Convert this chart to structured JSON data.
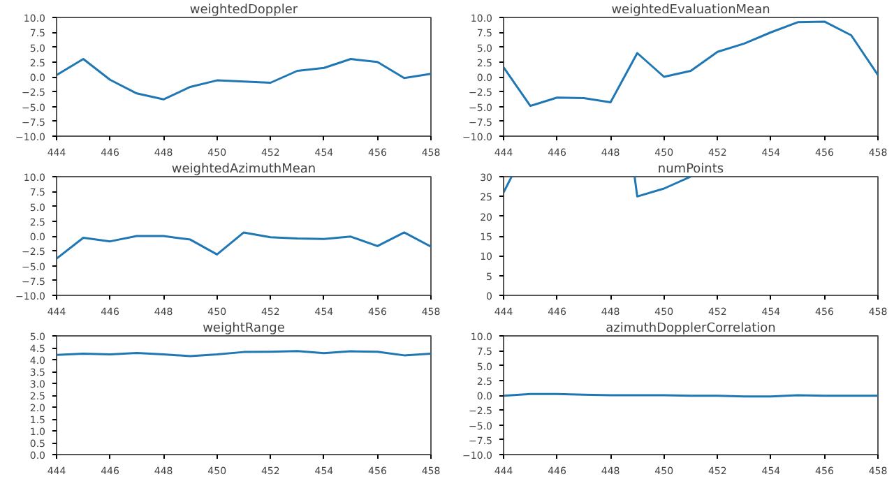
{
  "chart_data": [
    {
      "type": "line",
      "title": "weightedDoppler",
      "color": "#1f77b4",
      "x": [
        444,
        445,
        446,
        447,
        448,
        449,
        450,
        451,
        452,
        453,
        454,
        455,
        456,
        457,
        458
      ],
      "values": [
        0.3,
        3.0,
        -0.5,
        -2.8,
        -3.8,
        -1.7,
        -0.6,
        -0.8,
        -1.0,
        1.0,
        1.5,
        3.0,
        2.5,
        -0.2,
        0.5
      ],
      "xlim": [
        444,
        458
      ],
      "xticks": [
        444,
        446,
        448,
        450,
        452,
        454,
        456,
        458
      ],
      "ylim": [
        -10,
        10
      ],
      "yticks": [
        {
          "value": -10,
          "label": "−10.0"
        },
        {
          "value": -7.5,
          "label": "−7.5"
        },
        {
          "value": -5,
          "label": "−5.0"
        },
        {
          "value": -2.5,
          "label": "−2.5"
        },
        {
          "value": 0,
          "label": "0.0"
        },
        {
          "value": 2.5,
          "label": "2.5"
        },
        {
          "value": 5,
          "label": "5.0"
        },
        {
          "value": 7.5,
          "label": "7.5"
        },
        {
          "value": 10,
          "label": "10.0"
        }
      ]
    },
    {
      "type": "line",
      "title": "weightedEvaluationMean",
      "color": "#1f77b4",
      "x": [
        444,
        445,
        446,
        447,
        448,
        449,
        450,
        451,
        452,
        453,
        454,
        455,
        456,
        457,
        458
      ],
      "values": [
        1.6,
        -4.9,
        -3.5,
        -3.6,
        -4.3,
        4.0,
        0.0,
        1.0,
        4.2,
        5.6,
        7.5,
        9.2,
        9.3,
        7.0,
        0.3
      ],
      "xlim": [
        444,
        458
      ],
      "xticks": [
        444,
        446,
        448,
        450,
        452,
        454,
        456,
        458
      ],
      "ylim": [
        -10,
        10
      ],
      "yticks": [
        {
          "value": -10,
          "label": "−10.0"
        },
        {
          "value": -7.5,
          "label": "−7.5"
        },
        {
          "value": -5,
          "label": "−5.0"
        },
        {
          "value": -2.5,
          "label": "−2.5"
        },
        {
          "value": 0,
          "label": "0.0"
        },
        {
          "value": 2.5,
          "label": "2.5"
        },
        {
          "value": 5,
          "label": "5.0"
        },
        {
          "value": 7.5,
          "label": "7.5"
        },
        {
          "value": 10,
          "label": "10.0"
        }
      ]
    },
    {
      "type": "line",
      "title": "weightedAzimuthMean",
      "color": "#1f77b4",
      "x": [
        444,
        445,
        446,
        447,
        448,
        449,
        450,
        451,
        452,
        453,
        454,
        455,
        456,
        457,
        458
      ],
      "values": [
        -3.8,
        -0.3,
        -0.9,
        0.0,
        0.0,
        -0.6,
        -3.1,
        0.6,
        -0.2,
        -0.4,
        -0.5,
        -0.1,
        -1.7,
        0.6,
        -1.8
      ],
      "xlim": [
        444,
        458
      ],
      "xticks": [
        444,
        446,
        448,
        450,
        452,
        454,
        456,
        458
      ],
      "ylim": [
        -10,
        10
      ],
      "yticks": [
        {
          "value": -10,
          "label": "−10.0"
        },
        {
          "value": -7.5,
          "label": "−7.5"
        },
        {
          "value": -5,
          "label": "−5.0"
        },
        {
          "value": -2.5,
          "label": "−2.5"
        },
        {
          "value": 0,
          "label": "0.0"
        },
        {
          "value": 2.5,
          "label": "2.5"
        },
        {
          "value": 5,
          "label": "5.0"
        },
        {
          "value": 7.5,
          "label": "7.5"
        },
        {
          "value": 10,
          "label": "10.0"
        }
      ]
    },
    {
      "type": "line",
      "title": "numPoints",
      "color": "#1f77b4",
      "x": [
        444,
        444.3,
        446,
        448.9,
        449,
        450,
        451
      ],
      "values": [
        26,
        30,
        null,
        30,
        25,
        27,
        30
      ],
      "xlim": [
        444,
        458
      ],
      "xticks": [
        444,
        446,
        448,
        450,
        452,
        454,
        456,
        458
      ],
      "ylim": [
        0,
        30
      ],
      "yticks": [
        0,
        5,
        10,
        15,
        20,
        25,
        30
      ]
    },
    {
      "type": "line",
      "title": "weightRange",
      "color": "#1f77b4",
      "x": [
        444,
        445,
        446,
        447,
        448,
        449,
        450,
        451,
        452,
        453,
        454,
        455,
        456,
        457,
        458
      ],
      "values": [
        4.2,
        4.25,
        4.22,
        4.28,
        4.22,
        4.15,
        4.22,
        4.32,
        4.33,
        4.36,
        4.27,
        4.35,
        4.33,
        4.18,
        4.25
      ],
      "xlim": [
        444,
        458
      ],
      "xticks": [
        444,
        446,
        448,
        450,
        452,
        454,
        456,
        458
      ],
      "ylim": [
        0,
        5
      ],
      "yticks": [
        {
          "value": 0,
          "label": "0.0"
        },
        {
          "value": 0.5,
          "label": "0.5"
        },
        {
          "value": 1,
          "label": "1.0"
        },
        {
          "value": 1.5,
          "label": "1.5"
        },
        {
          "value": 2,
          "label": "2.0"
        },
        {
          "value": 2.5,
          "label": "2.5"
        },
        {
          "value": 3,
          "label": "3.0"
        },
        {
          "value": 3.5,
          "label": "3.5"
        },
        {
          "value": 4,
          "label": "4.0"
        },
        {
          "value": 4.5,
          "label": "4.5"
        },
        {
          "value": 5,
          "label": "5.0"
        }
      ]
    },
    {
      "type": "line",
      "title": "azimuthDopplerCorrelation",
      "color": "#1f77b4",
      "x": [
        444,
        445,
        446,
        447,
        448,
        449,
        450,
        451,
        452,
        453,
        454,
        455,
        456,
        457,
        458
      ],
      "values": [
        -0.1,
        0.2,
        0.2,
        0.1,
        0.0,
        0.0,
        0.0,
        -0.1,
        -0.1,
        -0.2,
        -0.2,
        0.0,
        -0.1,
        -0.1,
        -0.1
      ],
      "xlim": [
        444,
        458
      ],
      "xticks": [
        444,
        446,
        448,
        450,
        452,
        454,
        456,
        458
      ],
      "ylim": [
        -10,
        10
      ],
      "yticks": [
        {
          "value": -10,
          "label": "−10.0"
        },
        {
          "value": -7.5,
          "label": "−7.5"
        },
        {
          "value": -5,
          "label": "−5.0"
        },
        {
          "value": -2.5,
          "label": "−2.5"
        },
        {
          "value": 0,
          "label": "0.0"
        },
        {
          "value": 2.5,
          "label": "2.5"
        },
        {
          "value": 5,
          "label": "5.0"
        },
        {
          "value": 7.5,
          "label": "7.5"
        },
        {
          "value": 10,
          "label": "10.0"
        }
      ]
    }
  ]
}
